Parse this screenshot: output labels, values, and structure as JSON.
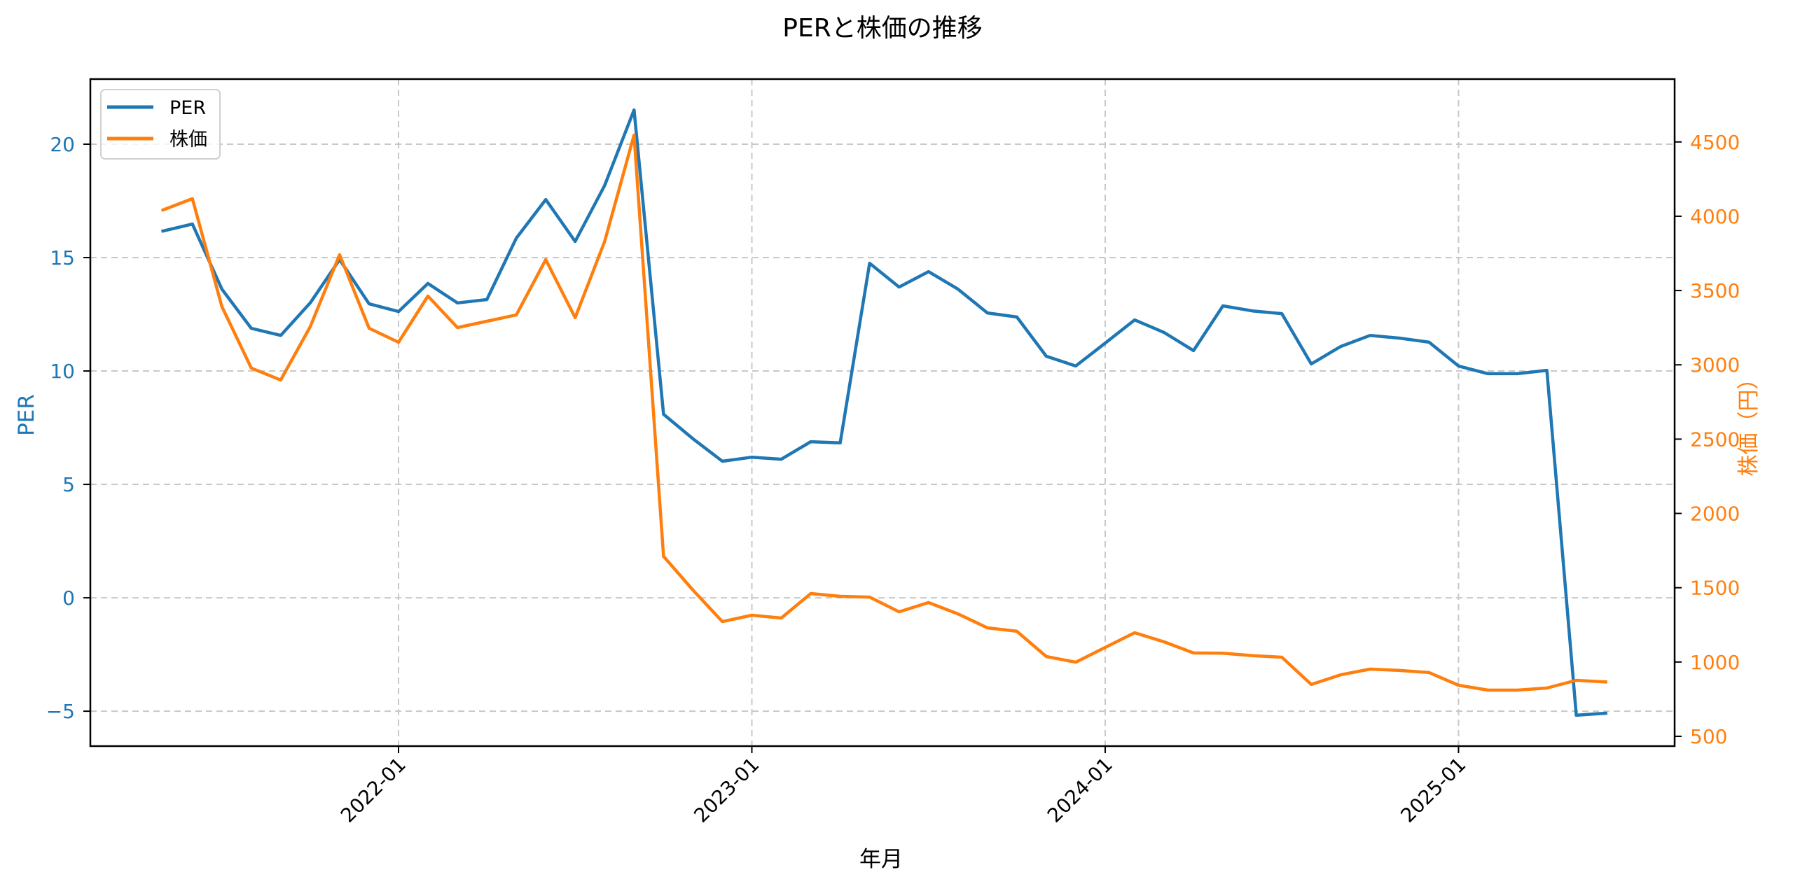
{
  "chart_data": {
    "type": "line",
    "title": "PERと株価の推移",
    "xlabel": "年月",
    "ylabel_left": "PER",
    "ylabel_right": "株価（円）",
    "grid": true,
    "legend_position": "upper left",
    "x": [
      "2021-05",
      "2021-06",
      "2021-07",
      "2021-08",
      "2021-09",
      "2021-10",
      "2021-11",
      "2021-12",
      "2022-01",
      "2022-02",
      "2022-03",
      "2022-04",
      "2022-05",
      "2022-06",
      "2022-07",
      "2022-08",
      "2022-09",
      "2022-10",
      "2022-11",
      "2022-12",
      "2023-01",
      "2023-02",
      "2023-03",
      "2023-04",
      "2023-05",
      "2023-06",
      "2023-07",
      "2023-08",
      "2023-09",
      "2023-10",
      "2023-11",
      "2023-12",
      "2024-01",
      "2024-02",
      "2024-03",
      "2024-04",
      "2024-05",
      "2024-06",
      "2024-07",
      "2024-08",
      "2024-09",
      "2024-10",
      "2024-11",
      "2024-12",
      "2025-01",
      "2025-02",
      "2025-03",
      "2025-04",
      "2025-05",
      "2025-06"
    ],
    "x_ticks": [
      "2022-01",
      "2023-01",
      "2024-01",
      "2025-01"
    ],
    "x_tick_rotation": 45,
    "series": [
      {
        "name": "PER",
        "axis": "left",
        "color": "#1f77b4",
        "values": [
          16.17,
          16.48,
          13.61,
          11.88,
          11.57,
          13.0,
          14.91,
          12.96,
          12.62,
          13.86,
          13.0,
          13.15,
          15.86,
          17.56,
          15.71,
          18.18,
          21.51,
          8.09,
          7.01,
          6.02,
          6.2,
          6.11,
          6.88,
          6.83,
          14.75,
          13.7,
          14.38,
          13.61,
          12.56,
          12.38,
          10.65,
          10.22,
          11.23,
          12.25,
          11.7,
          10.9,
          12.87,
          12.65,
          12.53,
          10.31,
          11.08,
          11.57,
          11.45,
          11.27,
          10.22,
          9.88,
          9.88,
          10.03,
          -5.18,
          -5.09
        ]
      },
      {
        "name": "株価",
        "axis": "right",
        "color": "#ff7f0e",
        "values": [
          4042,
          4118,
          3392,
          2978,
          2898,
          3256,
          3741,
          3246,
          3152,
          3463,
          3251,
          3293,
          3336,
          3708,
          3317,
          3830,
          4546,
          1711,
          1484,
          1272,
          1315,
          1296,
          1461,
          1442,
          1437,
          1338,
          1400,
          1324,
          1230,
          1207,
          1037,
          999,
          1098,
          1197,
          1136,
          1061,
          1059,
          1043,
          1032,
          849,
          914,
          952,
          943,
          929,
          844,
          811,
          811,
          825,
          877,
          866
        ]
      }
    ],
    "ylim_left": [
      -6.54,
      22.87
    ],
    "ylim_right": [
      434,
      4923
    ],
    "yticks_left": [
      -5,
      0,
      5,
      10,
      15,
      20
    ],
    "yticks_left_labels": [
      "−5",
      "0",
      "5",
      "10",
      "15",
      "20"
    ],
    "yticks_right": [
      500,
      1000,
      1500,
      2000,
      2500,
      3000,
      3500,
      4000,
      4500
    ],
    "yticks_right_labels": [
      "500",
      "1000",
      "1500",
      "2000",
      "2500",
      "3000",
      "3500",
      "4000",
      "4500"
    ],
    "colors": {
      "left_axis": "#1f77b4",
      "right_axis": "#ff7f0e",
      "grid": "#c8c8c8"
    }
  }
}
